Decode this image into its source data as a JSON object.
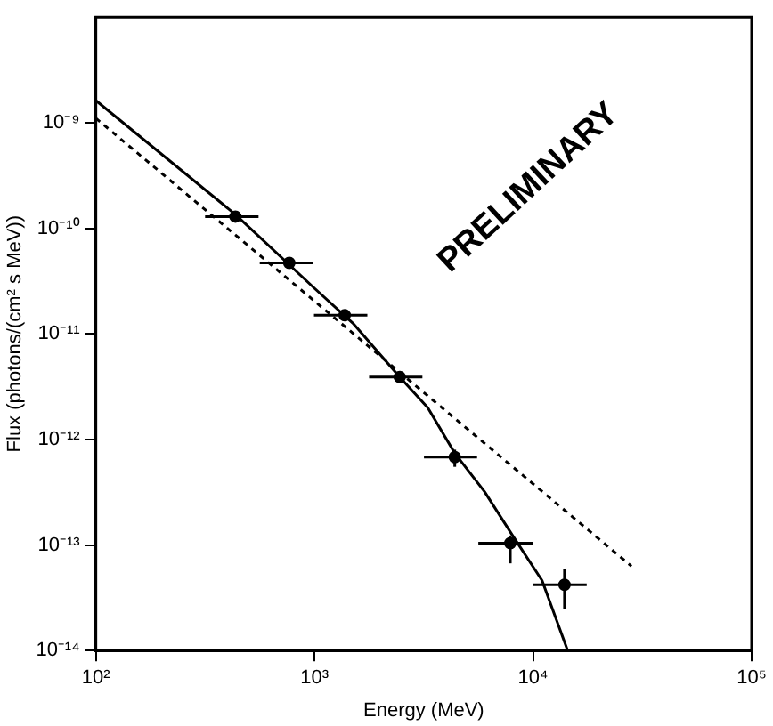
{
  "chart_data": {
    "type": "scatter",
    "xlabel": "Energy (MeV)",
    "ylabel": "Flux (photons/(cm² s MeV))",
    "log": "xy",
    "grid": false,
    "legend": false,
    "marker": "circle",
    "xlim": [
      100,
      100000
    ],
    "xticks": [
      {
        "value": 100,
        "label": "10²"
      },
      {
        "value": 1000,
        "label": "10³"
      },
      {
        "value": 10000,
        "label": "10⁴"
      },
      {
        "value": 100000,
        "label": "10⁵"
      }
    ],
    "ylim": [
      1e-14,
      1e-08
    ],
    "yticks": [
      {
        "value": 1e-14,
        "label": "10⁻¹⁴"
      },
      {
        "value": 1e-13,
        "label": "10⁻¹³"
      },
      {
        "value": 1e-12,
        "label": "10⁻¹²"
      },
      {
        "value": 1e-11,
        "label": "10⁻¹¹"
      },
      {
        "value": 1e-10,
        "label": "10⁻¹⁰"
      },
      {
        "value": 1e-09,
        "label": "10⁻⁹"
      }
    ],
    "annotations": [
      "PRELIMINARY"
    ],
    "series": [
      {
        "color": "#000000",
        "x": [
          435,
          767,
          1375,
          2455,
          4385,
          7870,
          13930
        ],
        "values": [
          1.29e-10,
          4.7e-11,
          1.5e-11,
          3.9e-12,
          6.8e-13,
          1.04e-13,
          4.2e-14
        ],
        "xerrors": [
          [
            316,
            555
          ],
          [
            562,
            982
          ],
          [
            995,
            1746
          ],
          [
            1778,
            3118
          ],
          [
            3170,
            5546
          ],
          [
            5620,
            9950
          ],
          [
            10000,
            17600
          ]
        ],
        "errors": [
          null,
          null,
          null,
          null,
          [
            5.5e-13,
            8e-13
          ],
          [
            6.7e-14,
            1.23e-13
          ],
          [
            2.5e-14,
            5.9e-14
          ]
        ]
      },
      {
        "type": "line",
        "color": "#000000",
        "marker": "none",
        "line_style": "solid",
        "x": [
          100,
          435,
          1000,
          1500,
          2455,
          3300,
          4385,
          6000,
          8000,
          11000,
          14400
        ],
        "values": [
          1.62e-09,
          1.35e-10,
          2.7e-11,
          1.26e-11,
          3.9e-12,
          2e-12,
          7.4e-13,
          3.2e-13,
          1.26e-13,
          4.6e-14,
          1e-14
        ]
      },
      {
        "type": "line",
        "color": "#000000",
        "marker": "none",
        "line_style": "dashed",
        "x": [
          100,
          28200
        ],
        "values": [
          1.1e-09,
          6.3e-14
        ]
      }
    ]
  }
}
